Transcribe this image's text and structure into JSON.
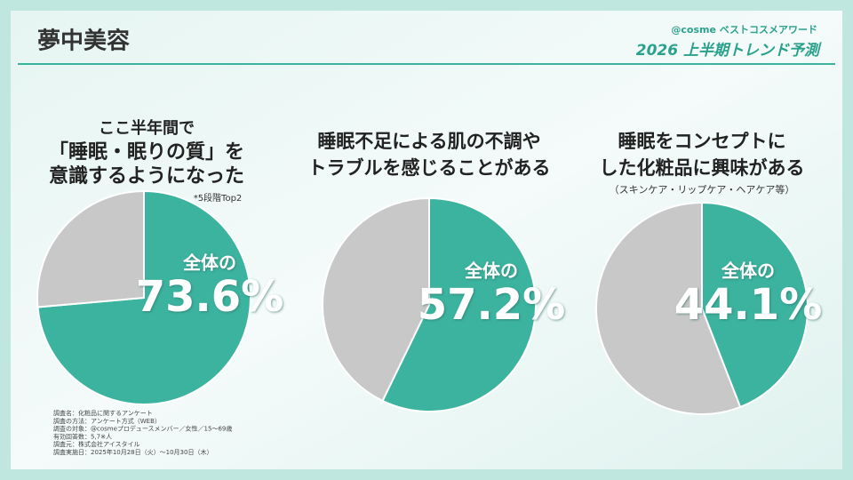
{
  "header": {
    "title": "夢中美容",
    "brand": "@cosme ベストコスメアワード",
    "subtitle": "2026 上半期トレンド予測"
  },
  "notes": [
    "調査名：化粧品に関するアンケート",
    "調査の方法：アンケート方式（WEB）",
    "調査の対象：@cosmeプロデュースメンバー／女性／15～69歳",
    "有効回答数：5,7※人",
    "調査元：株式会社アイスタイル",
    "調査実施日：2025年10月28日（火）～10月30日（木）"
  ],
  "chart_data": [
    {
      "type": "pie",
      "title": [
        "ここ半年間で",
        "「睡眠・眠りの質」を",
        "意識するようになった"
      ],
      "note": "*5段階Top2",
      "annotation": "全体の",
      "values": [
        73.6,
        26.4
      ],
      "value_labels": [
        "73.6%",
        null
      ],
      "colors": [
        "#3bb39f",
        "#c8c8c8"
      ]
    },
    {
      "type": "pie",
      "title": [
        "睡眠不足による肌の不調や",
        "トラブルを感じることがある"
      ],
      "annotation": "全体の",
      "values": [
        57.2,
        42.8
      ],
      "value_labels": [
        "57.2%",
        null
      ],
      "colors": [
        "#3bb39f",
        "#c8c8c8"
      ]
    },
    {
      "type": "pie",
      "title": [
        "睡眠をコンセプトに",
        "した化粧品に興味がある"
      ],
      "subtitle": "（スキンケア・リップケア・ヘアケア等）",
      "annotation": "全体の",
      "values": [
        44.1,
        55.9
      ],
      "value_labels": [
        "44.1%",
        null
      ],
      "colors": [
        "#3bb39f",
        "#c8c8c8"
      ]
    }
  ]
}
